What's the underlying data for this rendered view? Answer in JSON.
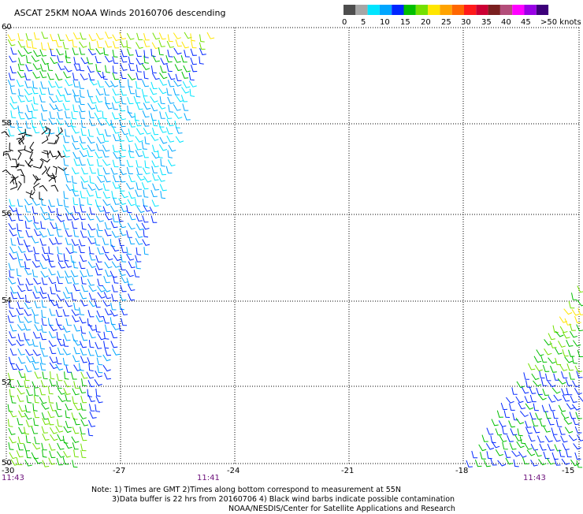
{
  "title": "ASCAT 25KM NOAA Winds 20160706 descending",
  "legend": {
    "ticks": [
      "0",
      "5",
      "10",
      "15",
      "20",
      "25",
      "30",
      "35",
      "40",
      "45"
    ],
    "last_label": ">50 knots",
    "colors": [
      "#4d4d4d",
      "#a6a6a6",
      "#00e5ff",
      "#00a6ff",
      "#0026ff",
      "#00bf00",
      "#73e000",
      "#ffe600",
      "#ffa300",
      "#ff6600",
      "#ff1a1a",
      "#cc0033",
      "#7a1f1f",
      "#b34d7a",
      "#ff00ff",
      "#9900e6",
      "#3d007a"
    ]
  },
  "lat_labels": [
    "60",
    "58",
    "56",
    "54",
    "52",
    "50"
  ],
  "lon_labels": [
    "-30",
    "-27",
    "-24",
    "-21",
    "-18",
    "-15"
  ],
  "pass_times": [
    "11:43",
    "11:41",
    "11:43"
  ],
  "notes": [
    "Note: 1) Times are GMT 2)Times along bottom correspond to measurement at 55N",
    "3)Data buffer is 22 hrs from 20160706 4) Black wind barbs indicate possible contamination",
    "NOAA/NESDIS/Center for Satellite Applications and Research"
  ],
  "barb_colors": {
    "contaminated": "#000000",
    "light": "#00e5ff",
    "mid": "#00a6ff",
    "strong": "#0026ff",
    "green": "#00bf00",
    "lightgreen": "#73e000",
    "yellow": "#ffe600"
  }
}
